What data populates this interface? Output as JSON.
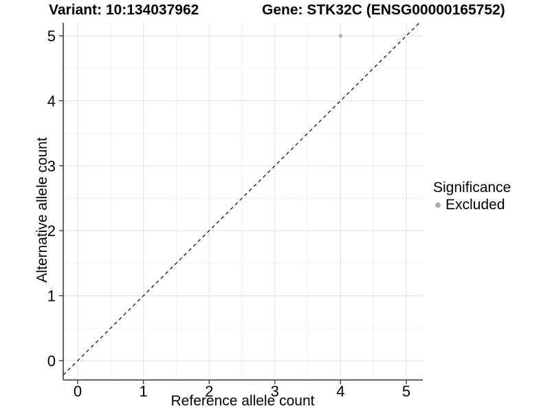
{
  "titles": {
    "variant": "Variant: 10:134037962",
    "gene": "Gene: STK32C (ENSG00000165752)"
  },
  "chart_data": {
    "type": "scatter",
    "title": "Variant: 10:134037962  Gene: STK32C (ENSG00000165752)",
    "xlabel": "Reference allele count",
    "ylabel": "Alternative allele count",
    "xticks": [
      0,
      1,
      2,
      3,
      4,
      5
    ],
    "yticks": [
      0,
      1,
      2,
      3,
      4,
      5
    ],
    "xlim": [
      -0.22,
      5.25
    ],
    "ylim": [
      -0.3,
      5.2
    ],
    "grid": {
      "visible": true,
      "minor_ticks": [
        0.5,
        1.5,
        2.5,
        3.5,
        4.5
      ]
    },
    "points": [
      {
        "x": 4,
        "y": 5,
        "significance": "Excluded"
      }
    ],
    "identity_line": {
      "slope": 1,
      "intercept": 0,
      "style": "dashed"
    },
    "legend": {
      "title": "Significance",
      "position": "right",
      "items": [
        {
          "label": "Excluded",
          "color": "#acacac"
        }
      ]
    }
  },
  "colors": {
    "background": "#ffffff",
    "text": "#000000",
    "axis": "#3c3c3c",
    "grid_major": "#e4e4e4",
    "grid_minor": "#efefef",
    "point_excluded": "#acacac",
    "identity_line": "#000000"
  }
}
